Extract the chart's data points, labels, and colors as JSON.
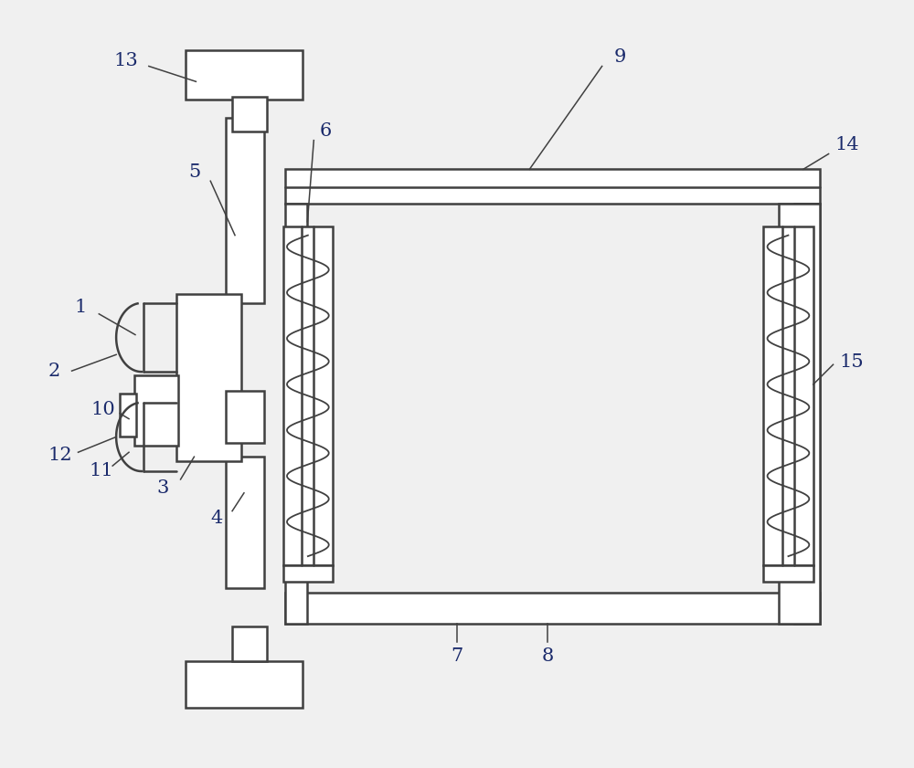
{
  "bg_color": "#f0f0f0",
  "line_color": "#404040",
  "lw": 1.8,
  "label_color": "#1a2a6b",
  "label_fontsize": 15
}
